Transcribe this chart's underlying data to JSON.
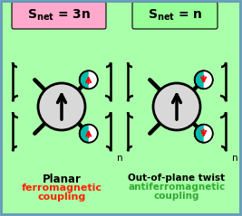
{
  "bg_color": "#aaffaa",
  "border_color": "#6699bb",
  "left_box_color": "#ffaacc",
  "right_box_color": "#99ff99",
  "center_circle_color": "#d8d8d8",
  "small_circle_teal": "#00bbaa",
  "small_circle_white": "#ffffff",
  "arrow_red_color": "#ff0000",
  "arrow_black_color": "#000000",
  "left_label2_color": "#ff2200",
  "right_label2_color": "#33aa33",
  "label_color": "#000000",
  "n_label": "n",
  "left_label1": "Planar",
  "left_label2": "ferromagnetic",
  "left_label3": "coupling",
  "right_label1": "Out-of-plane twist",
  "right_label2": "antiferromagnetic",
  "right_label3": "coupling"
}
